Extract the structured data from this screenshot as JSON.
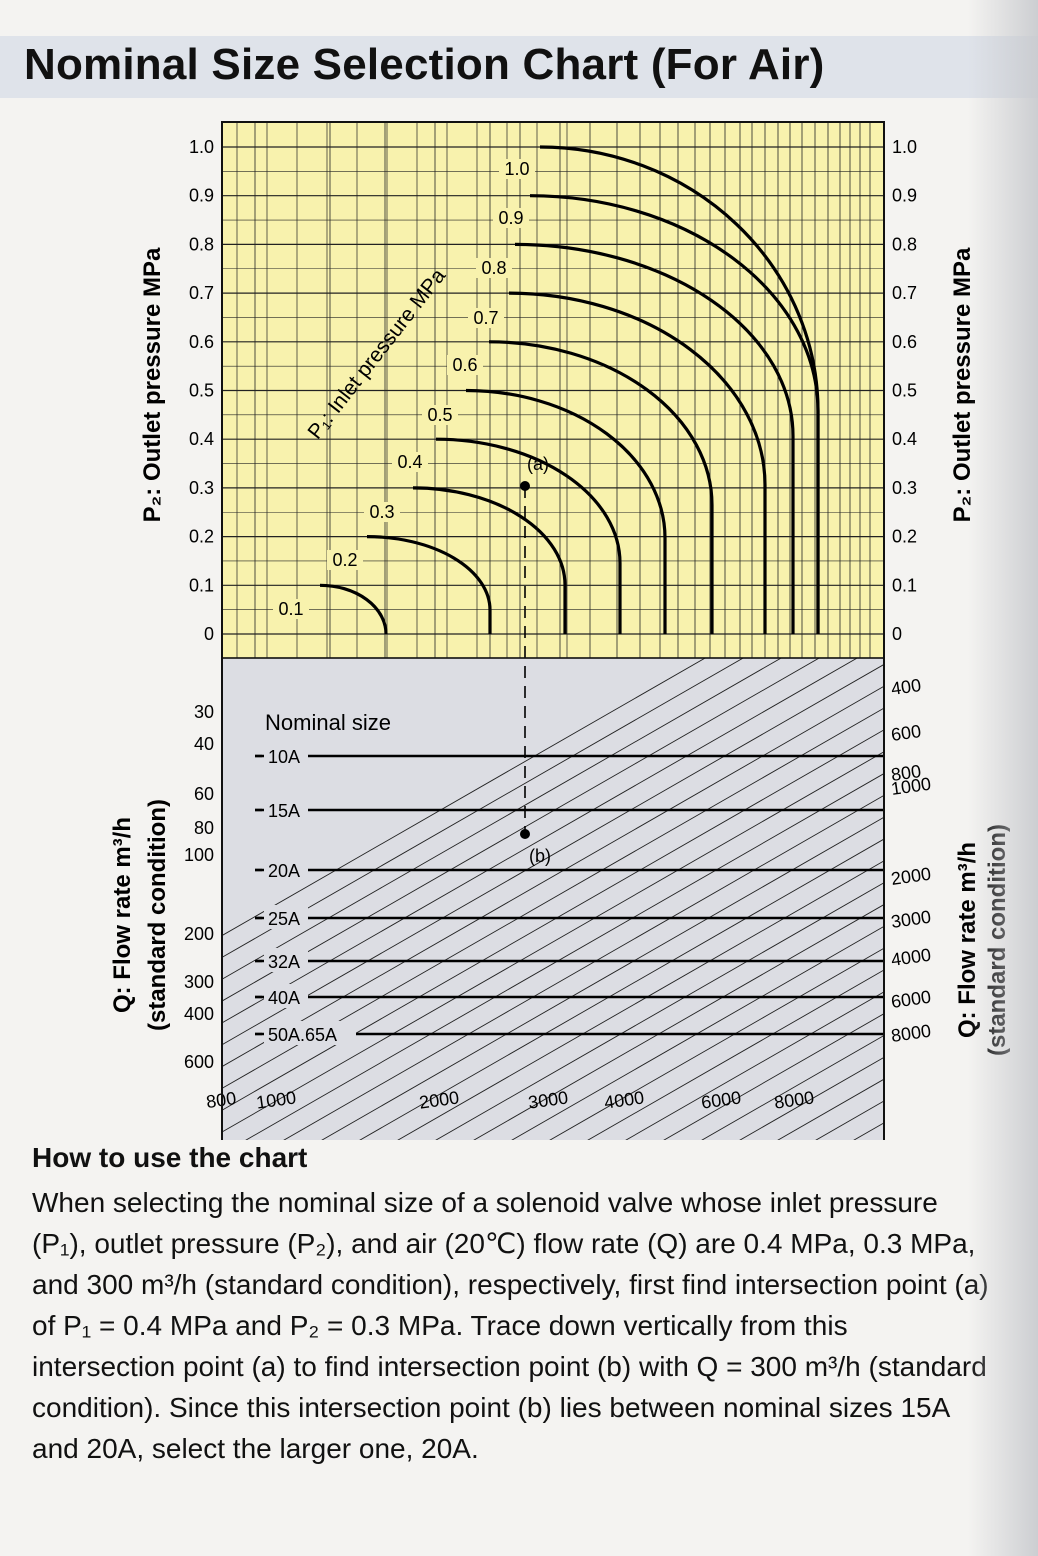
{
  "title": "Nominal Size Selection Chart (For Air)",
  "howto": {
    "heading": "How to use the chart",
    "body": "When selecting the nominal size of a solenoid valve whose inlet pressure (P₁), outlet pressure (P₂), and air (20℃) flow rate (Q) are 0.4 MPa, 0.3 MPa, and 300 m³/h (standard condition), respectively, first find intersection point (a) of P₁ = 0.4 MPa and P₂ = 0.3 MPa. Trace down vertically from this intersection point (a) to find intersection point (b) with Q = 300 m³/h (standard condition). Since this intersection point (b) lies between nominal sizes 15A and 20A, select the larger one, 20A."
  },
  "colors": {
    "upper_bg": "#f8f2ad",
    "lower_bg": "#dcdde3",
    "grid": "#222222",
    "curve": "#000000"
  },
  "chart_data": {
    "type": "line",
    "upper": {
      "ylabel_left": "P₂: Outlet pressure MPa",
      "ylabel_right": "P₂: Outlet pressure MPa",
      "yticks": [
        "1.0",
        "0.9",
        "0.8",
        "0.7",
        "0.6",
        "0.5",
        "0.4",
        "0.3",
        "0.2",
        "0.1",
        "0"
      ],
      "ylim": [
        0,
        1.0
      ],
      "curve_label": "P₁: Inlet pressure MPa",
      "series": [
        {
          "name": "0.1",
          "p1": 0.1
        },
        {
          "name": "0.2",
          "p1": 0.2
        },
        {
          "name": "0.3",
          "p1": 0.3
        },
        {
          "name": "0.4",
          "p1": 0.4
        },
        {
          "name": "0.5",
          "p1": 0.5
        },
        {
          "name": "0.6",
          "p1": 0.6
        },
        {
          "name": "0.7",
          "p1": 0.7
        },
        {
          "name": "0.8",
          "p1": 0.8
        },
        {
          "name": "0.9",
          "p1": 0.9
        },
        {
          "name": "1.0",
          "p1": 1.0
        }
      ],
      "point_a": {
        "label": "(a)",
        "p1": 0.4,
        "p2": 0.3
      }
    },
    "lower": {
      "ylabel_left": "Q: Flow rate m³/h\n(standard condition)",
      "ylabel_right": "Q: Flow rate m³/h\n(standard condition)",
      "left_ticks": [
        "30",
        "40",
        "60",
        "80",
        "100",
        "200",
        "300",
        "400",
        "600"
      ],
      "right_ticks": [
        "400",
        "600",
        "800",
        "1000",
        "2000",
        "3000",
        "4000",
        "6000",
        "8000"
      ],
      "bottom_ticks": [
        "800",
        "1000",
        "2000",
        "3000",
        "4000",
        "6000",
        "8000"
      ],
      "nominal_size_label": "Nominal size",
      "nominal_sizes": [
        "10A",
        "15A",
        "20A",
        "25A",
        "32A",
        "40A",
        "50A.65A"
      ],
      "point_b": {
        "label": "(b)",
        "q": 300
      }
    }
  }
}
